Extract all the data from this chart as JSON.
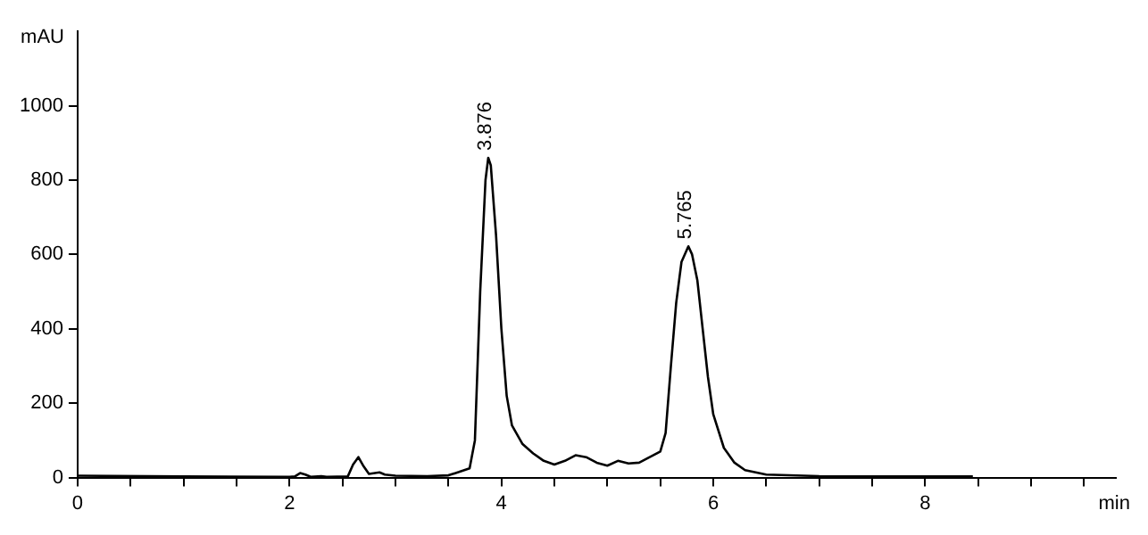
{
  "chart_data": {
    "type": "line",
    "xlabel": "min",
    "ylabel": "mAU",
    "x": [
      0,
      1,
      2,
      2.05,
      2.1,
      2.15,
      2.2,
      2.3,
      2.35,
      2.55,
      2.6,
      2.65,
      2.7,
      2.75,
      2.85,
      2.9,
      3.0,
      3.3,
      3.5,
      3.6,
      3.7,
      3.75,
      3.8,
      3.85,
      3.876,
      3.9,
      3.95,
      4.0,
      4.05,
      4.1,
      4.2,
      4.3,
      4.4,
      4.5,
      4.6,
      4.7,
      4.8,
      4.9,
      5.0,
      5.1,
      5.2,
      5.3,
      5.4,
      5.5,
      5.55,
      5.6,
      5.65,
      5.7,
      5.765,
      5.8,
      5.85,
      5.9,
      5.95,
      6.0,
      6.1,
      6.2,
      6.3,
      6.5,
      7,
      8,
      8.45
    ],
    "series": [
      {
        "color": "#000000",
        "values": [
          5,
          3,
          2,
          3,
          12,
          8,
          2,
          4,
          2,
          3,
          35,
          55,
          30,
          10,
          14,
          8,
          5,
          4,
          6,
          15,
          25,
          100,
          500,
          800,
          860,
          840,
          650,
          400,
          220,
          140,
          90,
          65,
          45,
          35,
          45,
          60,
          55,
          40,
          32,
          45,
          38,
          40,
          55,
          70,
          120,
          300,
          470,
          580,
          622,
          600,
          530,
          400,
          270,
          170,
          80,
          40,
          20,
          8,
          4,
          3,
          3
        ]
      }
    ],
    "xlim": [
      0,
      9.8
    ],
    "xticks": [
      0,
      {
        "value": 0.5,
        "label": null
      },
      {
        "value": 1,
        "label": null
      },
      {
        "value": 1.5,
        "label": null
      },
      2,
      {
        "value": 2.5,
        "label": null
      },
      {
        "value": 3,
        "label": null
      },
      {
        "value": 3.5,
        "label": null
      },
      4,
      {
        "value": 4.5,
        "label": null
      },
      {
        "value": 5,
        "label": null
      },
      {
        "value": 5.5,
        "label": null
      },
      6,
      {
        "value": 6.5,
        "label": null
      },
      {
        "value": 7,
        "label": null
      },
      {
        "value": 7.5,
        "label": null
      },
      8,
      {
        "value": 8.5,
        "label": null
      },
      {
        "value": 9,
        "label": null
      },
      {
        "value": 9.5,
        "label": null
      }
    ],
    "ylim": [
      0,
      1200
    ],
    "yticks": [
      0,
      200,
      400,
      600,
      800,
      1000
    ],
    "grid": false,
    "legend": false,
    "marker": "none",
    "line_style": "solid",
    "annotations": [
      {
        "text": "3.876",
        "x": 3.876,
        "y": 860
      },
      {
        "text": "5.765",
        "x": 5.765,
        "y": 622
      }
    ]
  }
}
